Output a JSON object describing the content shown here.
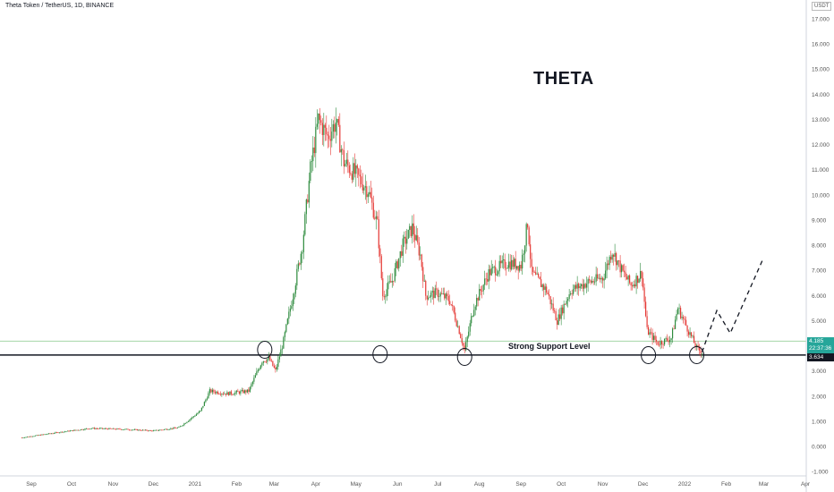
{
  "header": {
    "symbol_line": "Theta Token / TetherUS, 1D, BINANCE",
    "unit": "USDT"
  },
  "annotations": {
    "ticker": "THETA",
    "support_label": "Strong Support Level"
  },
  "price_tags": {
    "current": "4.185",
    "countdown": "22:37:36",
    "support": "3.634"
  },
  "colors": {
    "up": "#26a69a",
    "up_body": "#2e8b3e",
    "down": "#e53935",
    "support_line": "#131722",
    "current_line": "#a5d6a7",
    "projection": "#131722"
  },
  "chart_data": {
    "type": "candlestick",
    "title": "",
    "xlabel": "",
    "ylabel": "",
    "ylim": [
      -1,
      17
    ],
    "y_ticks": [
      "-1.000",
      "0.000",
      "1.000",
      "2.000",
      "3.000",
      "4.000",
      "5.000",
      "6.000",
      "7.000",
      "8.000",
      "9.000",
      "10.000",
      "11.000",
      "12.000",
      "13.000",
      "14.000",
      "15.000",
      "16.000",
      "17.000"
    ],
    "x_ticks": [
      "Sep",
      "Oct",
      "Nov",
      "Dec",
      "2021",
      "Feb",
      "Mar",
      "Apr",
      "May",
      "Jun",
      "Jul",
      "Aug",
      "Sep",
      "Oct",
      "Nov",
      "Dec",
      "2022",
      "Feb",
      "Mar",
      "Apr"
    ],
    "support_level": 3.634,
    "current_price": 4.185,
    "circled_touches": [
      "Feb 2021",
      "May 2021",
      "Jul 2021",
      "Dec 2021",
      "Jan 2022"
    ],
    "close_series": {
      "x_start": "2020-08-25",
      "x_end": "2022-01-14",
      "keypoints": [
        [
          "2020-08-25",
          0.35
        ],
        [
          "2020-09-20",
          0.55
        ],
        [
          "2020-10-15",
          0.72
        ],
        [
          "2020-11-10",
          0.68
        ],
        [
          "2020-12-01",
          0.62
        ],
        [
          "2020-12-20",
          0.75
        ],
        [
          "2021-01-05",
          1.4
        ],
        [
          "2021-01-12",
          2.2
        ],
        [
          "2021-01-25",
          2.1
        ],
        [
          "2021-02-10",
          2.2
        ],
        [
          "2021-02-20",
          3.4
        ],
        [
          "2021-02-25",
          3.5
        ],
        [
          "2021-03-02",
          3.0
        ],
        [
          "2021-03-08",
          4.2
        ],
        [
          "2021-03-15",
          6.0
        ],
        [
          "2021-03-22",
          8.0
        ],
        [
          "2021-03-28",
          11.0
        ],
        [
          "2021-04-03",
          13.0
        ],
        [
          "2021-04-10",
          12.3
        ],
        [
          "2021-04-16",
          12.9
        ],
        [
          "2021-04-22",
          11.3
        ],
        [
          "2021-05-01",
          10.8
        ],
        [
          "2021-05-10",
          10.2
        ],
        [
          "2021-05-17",
          8.8
        ],
        [
          "2021-05-21",
          6.0
        ],
        [
          "2021-05-28",
          6.6
        ],
        [
          "2021-06-05",
          8.0
        ],
        [
          "2021-06-12",
          8.7
        ],
        [
          "2021-06-18",
          7.6
        ],
        [
          "2021-06-22",
          6.0
        ],
        [
          "2021-07-01",
          6.1
        ],
        [
          "2021-07-10",
          5.8
        ],
        [
          "2021-07-17",
          4.6
        ],
        [
          "2021-07-21",
          3.8
        ],
        [
          "2021-07-28",
          5.6
        ],
        [
          "2021-08-08",
          6.9
        ],
        [
          "2021-08-22",
          7.3
        ],
        [
          "2021-09-01",
          7.2
        ],
        [
          "2021-09-06",
          8.9
        ],
        [
          "2021-09-09",
          6.9
        ],
        [
          "2021-09-20",
          6.2
        ],
        [
          "2021-09-28",
          5.0
        ],
        [
          "2021-10-08",
          6.2
        ],
        [
          "2021-10-20",
          6.5
        ],
        [
          "2021-11-01",
          6.7
        ],
        [
          "2021-11-08",
          7.8
        ],
        [
          "2021-11-15",
          7.0
        ],
        [
          "2021-11-22",
          6.4
        ],
        [
          "2021-11-30",
          6.9
        ],
        [
          "2021-12-04",
          4.6
        ],
        [
          "2021-12-12",
          4.1
        ],
        [
          "2021-12-22",
          4.3
        ],
        [
          "2021-12-27",
          5.5
        ],
        [
          "2022-01-03",
          4.7
        ],
        [
          "2022-01-10",
          3.9
        ],
        [
          "2022-01-14",
          3.75
        ]
      ]
    },
    "projection": [
      [
        "2022-01-14",
        3.75
      ],
      [
        "2022-01-25",
        5.4
      ],
      [
        "2022-02-04",
        4.5
      ],
      [
        "2022-02-28",
        7.4
      ]
    ]
  }
}
